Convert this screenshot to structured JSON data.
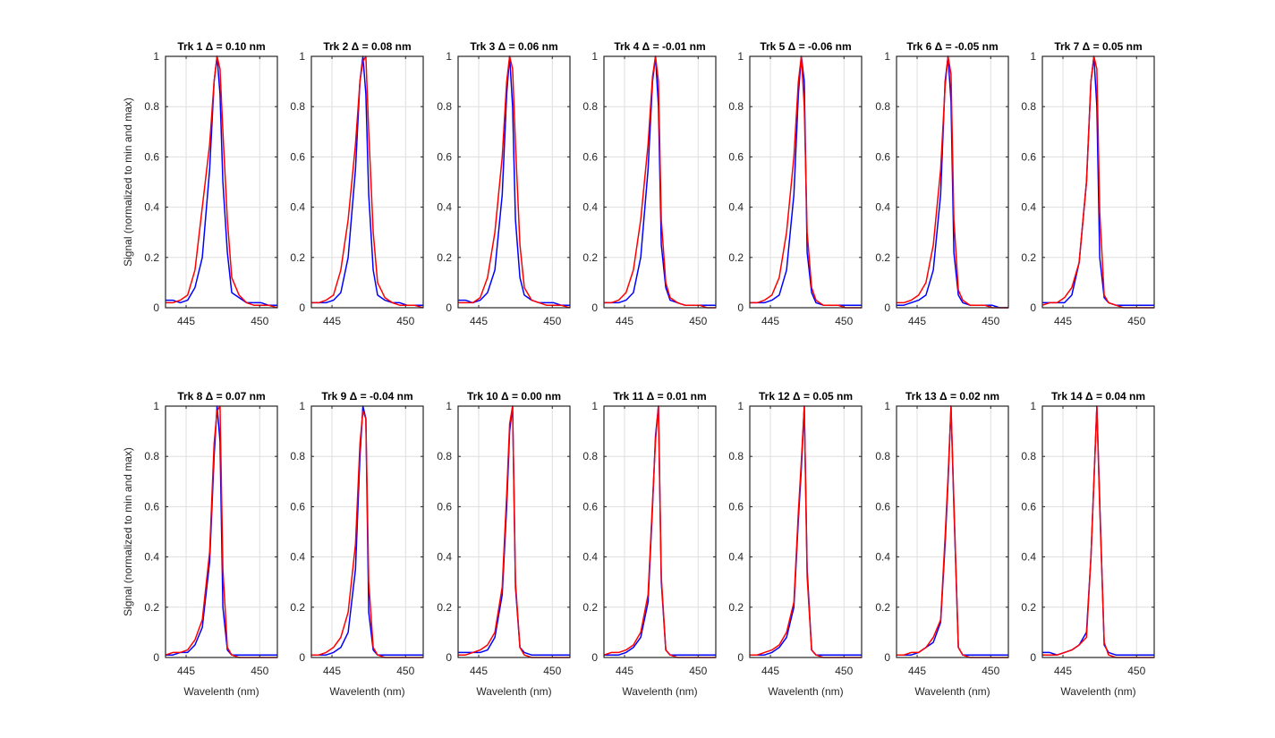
{
  "chart_data": {
    "type": "line",
    "layout": {
      "rows": 2,
      "cols": 7
    },
    "xlim": [
      443.6,
      451.2
    ],
    "ylim": [
      0,
      1
    ],
    "xticks": [
      445,
      450
    ],
    "xtick_labels": [
      "445",
      "450"
    ],
    "yticks": [
      0,
      0.2,
      0.4,
      0.6,
      0.8,
      1
    ],
    "ytick_labels": [
      "0",
      "0.2",
      "0.4",
      "0.6",
      "0.8",
      "1"
    ],
    "xlabel": "Wavelenth (nm)",
    "ylabel": "Signal (normalized to min and max)",
    "grid": true,
    "x": [
      443.6,
      444.1,
      444.6,
      445.1,
      445.6,
      446.1,
      446.6,
      446.9,
      447.1,
      447.3,
      447.5,
      447.8,
      448.1,
      448.6,
      449.1,
      449.6,
      450.1,
      450.6,
      451.2
    ],
    "series_colors": {
      "blue": "#0000ff",
      "red": "#ff0000"
    },
    "panels": [
      {
        "title": "Trk 1 Δ = 0.10 nm",
        "blue": [
          0.03,
          0.03,
          0.02,
          0.03,
          0.08,
          0.2,
          0.55,
          0.9,
          1.0,
          0.85,
          0.5,
          0.22,
          0.06,
          0.04,
          0.02,
          0.02,
          0.02,
          0.01,
          0.01
        ],
        "red": [
          0.02,
          0.02,
          0.03,
          0.05,
          0.15,
          0.4,
          0.65,
          0.9,
          1.0,
          0.95,
          0.7,
          0.35,
          0.12,
          0.05,
          0.02,
          0.01,
          0.01,
          0.01,
          0.0
        ]
      },
      {
        "title": "Trk 2 Δ = 0.08 nm",
        "blue": [
          0.02,
          0.02,
          0.02,
          0.03,
          0.06,
          0.2,
          0.55,
          0.9,
          1.0,
          0.85,
          0.45,
          0.15,
          0.05,
          0.03,
          0.02,
          0.02,
          0.01,
          0.01,
          0.01
        ],
        "red": [
          0.02,
          0.02,
          0.03,
          0.05,
          0.15,
          0.35,
          0.65,
          0.9,
          0.98,
          1.0,
          0.7,
          0.3,
          0.1,
          0.04,
          0.02,
          0.01,
          0.01,
          0.01,
          0.0
        ]
      },
      {
        "title": "Trk 3 Δ = 0.06 nm",
        "blue": [
          0.03,
          0.03,
          0.02,
          0.03,
          0.06,
          0.15,
          0.45,
          0.85,
          1.0,
          0.8,
          0.35,
          0.12,
          0.05,
          0.03,
          0.02,
          0.02,
          0.02,
          0.01,
          0.01
        ],
        "red": [
          0.02,
          0.02,
          0.02,
          0.04,
          0.12,
          0.3,
          0.6,
          0.9,
          1.0,
          0.95,
          0.65,
          0.25,
          0.08,
          0.03,
          0.02,
          0.01,
          0.01,
          0.01,
          0.0
        ]
      },
      {
        "title": "Trk 4 Δ = -0.01 nm",
        "blue": [
          0.02,
          0.02,
          0.02,
          0.03,
          0.06,
          0.2,
          0.55,
          0.9,
          1.0,
          0.8,
          0.25,
          0.08,
          0.03,
          0.02,
          0.01,
          0.01,
          0.01,
          0.01,
          0.01
        ],
        "red": [
          0.02,
          0.02,
          0.03,
          0.06,
          0.15,
          0.35,
          0.65,
          0.92,
          1.0,
          0.9,
          0.35,
          0.1,
          0.04,
          0.02,
          0.01,
          0.01,
          0.01,
          0.0,
          0.0
        ]
      },
      {
        "title": "Trk 5 Δ = -0.06 nm",
        "blue": [
          0.02,
          0.02,
          0.02,
          0.03,
          0.05,
          0.15,
          0.45,
          0.85,
          1.0,
          0.9,
          0.22,
          0.06,
          0.02,
          0.01,
          0.01,
          0.01,
          0.01,
          0.01,
          0.01
        ],
        "red": [
          0.02,
          0.02,
          0.03,
          0.05,
          0.12,
          0.3,
          0.6,
          0.9,
          1.0,
          0.8,
          0.3,
          0.08,
          0.03,
          0.01,
          0.01,
          0.01,
          0.0,
          0.0,
          0.0
        ]
      },
      {
        "title": "Trk 6 Δ = -0.05 nm",
        "blue": [
          0.01,
          0.01,
          0.02,
          0.03,
          0.05,
          0.15,
          0.45,
          0.9,
          1.0,
          0.82,
          0.22,
          0.05,
          0.02,
          0.01,
          0.01,
          0.01,
          0.01,
          0.0,
          0.0
        ],
        "red": [
          0.02,
          0.02,
          0.03,
          0.05,
          0.1,
          0.25,
          0.55,
          0.88,
          1.0,
          0.93,
          0.35,
          0.07,
          0.03,
          0.01,
          0.01,
          0.01,
          0.0,
          0.0,
          0.0
        ]
      },
      {
        "title": "Trk 7 Δ = 0.05 nm",
        "blue": [
          0.02,
          0.02,
          0.02,
          0.02,
          0.05,
          0.18,
          0.5,
          0.9,
          1.0,
          0.8,
          0.2,
          0.04,
          0.02,
          0.01,
          0.01,
          0.01,
          0.01,
          0.01,
          0.01
        ],
        "red": [
          0.01,
          0.02,
          0.02,
          0.04,
          0.08,
          0.18,
          0.5,
          0.9,
          1.0,
          0.95,
          0.38,
          0.05,
          0.02,
          0.01,
          0.0,
          0.0,
          0.0,
          0.0,
          0.0
        ]
      },
      {
        "title": "Trk 8 Δ = 0.07 nm",
        "blue": [
          0.01,
          0.01,
          0.02,
          0.02,
          0.05,
          0.12,
          0.38,
          0.8,
          1.0,
          0.86,
          0.2,
          0.03,
          0.01,
          0.01,
          0.01,
          0.01,
          0.01,
          0.01,
          0.01
        ],
        "red": [
          0.01,
          0.02,
          0.02,
          0.03,
          0.07,
          0.15,
          0.42,
          0.85,
          0.98,
          1.0,
          0.35,
          0.04,
          0.01,
          0.0,
          0.0,
          0.0,
          0.0,
          0.0,
          0.0
        ]
      },
      {
        "title": "Trk 9 Δ = -0.04 nm",
        "blue": [
          0.01,
          0.01,
          0.01,
          0.02,
          0.04,
          0.1,
          0.35,
          0.8,
          1.0,
          0.95,
          0.18,
          0.03,
          0.01,
          0.01,
          0.01,
          0.01,
          0.01,
          0.01,
          0.01
        ],
        "red": [
          0.01,
          0.01,
          0.02,
          0.04,
          0.08,
          0.18,
          0.45,
          0.85,
          0.98,
          0.95,
          0.3,
          0.04,
          0.01,
          0.0,
          0.0,
          0.0,
          0.0,
          0.0,
          0.0
        ]
      },
      {
        "title": "Trk 10 Δ = 0.00 nm",
        "blue": [
          0.02,
          0.02,
          0.02,
          0.02,
          0.03,
          0.08,
          0.25,
          0.6,
          0.9,
          1.0,
          0.28,
          0.04,
          0.02,
          0.01,
          0.01,
          0.01,
          0.01,
          0.01,
          0.01
        ],
        "red": [
          0.01,
          0.01,
          0.02,
          0.03,
          0.05,
          0.1,
          0.28,
          0.65,
          0.93,
          1.0,
          0.3,
          0.04,
          0.01,
          0.0,
          0.0,
          0.0,
          0.0,
          0.0,
          0.0
        ]
      },
      {
        "title": "Trk 11 Δ = 0.01 nm",
        "blue": [
          0.01,
          0.01,
          0.01,
          0.02,
          0.04,
          0.08,
          0.22,
          0.6,
          0.88,
          1.0,
          0.3,
          0.03,
          0.01,
          0.01,
          0.01,
          0.01,
          0.01,
          0.01,
          0.01
        ],
        "red": [
          0.01,
          0.02,
          0.02,
          0.03,
          0.05,
          0.1,
          0.25,
          0.62,
          0.86,
          1.0,
          0.32,
          0.03,
          0.01,
          0.0,
          0.0,
          0.0,
          0.0,
          0.0,
          0.0
        ]
      },
      {
        "title": "Trk 12 Δ = 0.05 nm",
        "blue": [
          0.01,
          0.01,
          0.01,
          0.02,
          0.04,
          0.08,
          0.2,
          0.55,
          0.75,
          1.0,
          0.35,
          0.03,
          0.01,
          0.01,
          0.01,
          0.01,
          0.01,
          0.01,
          0.01
        ],
        "red": [
          0.01,
          0.01,
          0.02,
          0.03,
          0.05,
          0.1,
          0.22,
          0.58,
          0.78,
          1.0,
          0.32,
          0.03,
          0.01,
          0.0,
          0.0,
          0.0,
          0.0,
          0.0,
          0.0
        ]
      },
      {
        "title": "Trk 13 Δ = 0.02 nm",
        "blue": [
          0.01,
          0.01,
          0.01,
          0.02,
          0.04,
          0.06,
          0.14,
          0.45,
          0.7,
          1.0,
          0.6,
          0.04,
          0.01,
          0.01,
          0.01,
          0.01,
          0.01,
          0.01,
          0.01
        ],
        "red": [
          0.01,
          0.01,
          0.02,
          0.02,
          0.04,
          0.08,
          0.15,
          0.48,
          0.72,
          1.0,
          0.62,
          0.04,
          0.01,
          0.0,
          0.0,
          0.0,
          0.0,
          0.0,
          0.0
        ]
      },
      {
        "title": "Trk 14 Δ = 0.04 nm",
        "blue": [
          0.02,
          0.02,
          0.01,
          0.02,
          0.03,
          0.05,
          0.1,
          0.4,
          0.7,
          1.0,
          0.62,
          0.05,
          0.02,
          0.01,
          0.01,
          0.01,
          0.01,
          0.01,
          0.01
        ],
        "red": [
          0.01,
          0.01,
          0.01,
          0.02,
          0.03,
          0.05,
          0.08,
          0.4,
          0.7,
          1.0,
          0.6,
          0.06,
          0.01,
          0.0,
          0.0,
          0.0,
          0.0,
          0.0,
          0.0
        ]
      }
    ]
  }
}
